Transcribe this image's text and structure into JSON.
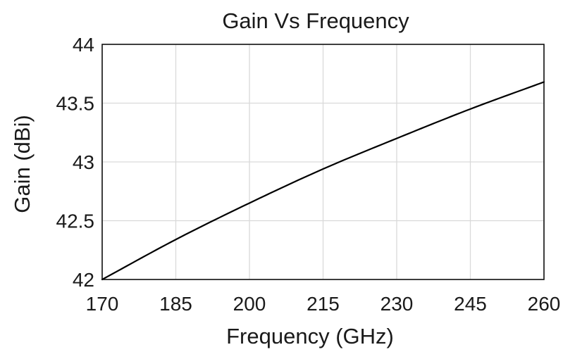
{
  "chart_data": {
    "type": "line",
    "title": "Gain Vs Frequency",
    "xlabel": "Frequency (GHz)",
    "ylabel": "Gain (dBi)",
    "xlim": [
      170,
      260
    ],
    "ylim": [
      42,
      44
    ],
    "x_ticks": [
      "170",
      "185",
      "200",
      "215",
      "230",
      "245",
      "260"
    ],
    "y_ticks": [
      "44",
      "43.5",
      "43",
      "42.5",
      "42"
    ],
    "grid": true,
    "legend": "none",
    "line_color": "#000000",
    "series": [
      {
        "x": [
          170,
          185,
          200,
          215,
          230,
          245,
          260
        ],
        "y": [
          42.0,
          42.34,
          42.65,
          42.94,
          43.2,
          43.45,
          43.68
        ]
      }
    ]
  }
}
